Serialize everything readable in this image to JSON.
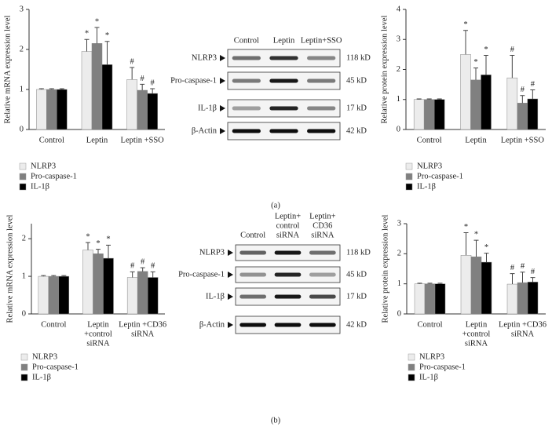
{
  "chart_data": [
    {
      "type": "bar",
      "y_label": "Relative mRNA expression level",
      "categories": [
        [
          "Control"
        ],
        [
          "Leptin"
        ],
        [
          "Leptin +SSO"
        ]
      ],
      "ylim": [
        0,
        3
      ],
      "yticks": [
        0,
        1,
        2,
        3
      ],
      "series": [
        {
          "name": "NLRP3",
          "color": "#ececec",
          "values": [
            1,
            1.95,
            1.25
          ],
          "errors": [
            0.02,
            0.3,
            0.3
          ],
          "markers": [
            null,
            "*",
            "#"
          ]
        },
        {
          "name": "Pro-caspase-1",
          "color": "#808080",
          "values": [
            1,
            2.15,
            0.98
          ],
          "errors": [
            0.02,
            0.4,
            0.15
          ],
          "markers": [
            null,
            "*",
            "#"
          ]
        },
        {
          "name": "IL-1β",
          "color": "#000000",
          "values": [
            1,
            1.62,
            0.9
          ],
          "errors": [
            0.02,
            0.58,
            0.12
          ],
          "markers": [
            null,
            "*",
            "#"
          ]
        }
      ]
    },
    {
      "type": "bar",
      "y_label": "Relative protein expression level",
      "categories": [
        [
          "Control"
        ],
        [
          "Leptin"
        ],
        [
          "Leptin +SSO"
        ]
      ],
      "ylim": [
        0,
        4
      ],
      "yticks": [
        0,
        1,
        2,
        3,
        4
      ],
      "series": [
        {
          "name": "NLRP3",
          "color": "#ececec",
          "values": [
            1,
            2.5,
            1.72
          ],
          "errors": [
            0.02,
            0.8,
            0.75
          ],
          "markers": [
            null,
            "*",
            "#"
          ]
        },
        {
          "name": "Pro-caspase-1",
          "color": "#808080",
          "values": [
            1,
            1.65,
            0.88
          ],
          "errors": [
            0.02,
            0.4,
            0.25
          ],
          "markers": [
            null,
            "*",
            "#"
          ]
        },
        {
          "name": "IL-1β",
          "color": "#000000",
          "values": [
            1,
            1.82,
            1.02
          ],
          "errors": [
            0.02,
            0.65,
            0.3
          ],
          "markers": [
            null,
            "*",
            "#"
          ]
        }
      ]
    },
    {
      "type": "bar",
      "y_label": "Relative mRNA expression level",
      "categories": [
        [
          "Control"
        ],
        [
          "Leptin",
          "+control",
          "siRNA"
        ],
        [
          "Leptin +CD36",
          "siRNA"
        ]
      ],
      "ylim": [
        0,
        2.4
      ],
      "yticks": [
        0,
        1,
        2
      ],
      "series": [
        {
          "name": "NLRP3",
          "color": "#ececec",
          "values": [
            1,
            1.7,
            0.97
          ],
          "errors": [
            0.02,
            0.2,
            0.15
          ],
          "markers": [
            null,
            "*",
            "#"
          ]
        },
        {
          "name": "Pro-caspase-1",
          "color": "#808080",
          "values": [
            1,
            1.6,
            1.13
          ],
          "errors": [
            0.02,
            0.12,
            0.1
          ],
          "markers": [
            null,
            "*",
            "#"
          ]
        },
        {
          "name": "IL-1β",
          "color": "#000000",
          "values": [
            1,
            1.48,
            0.97
          ],
          "errors": [
            0.02,
            0.35,
            0.15
          ],
          "markers": [
            null,
            "*",
            "#"
          ]
        }
      ]
    },
    {
      "type": "bar",
      "y_label": "Relative protein expression level",
      "categories": [
        [
          "Control"
        ],
        [
          "Leptin",
          "+control",
          "siRNA"
        ],
        [
          "Leptin +CD36",
          "siRNA"
        ]
      ],
      "ylim": [
        0,
        3
      ],
      "yticks": [
        0,
        1,
        2,
        3
      ],
      "series": [
        {
          "name": "NLRP3",
          "color": "#ececec",
          "values": [
            1,
            1.95,
            0.99
          ],
          "errors": [
            0.02,
            0.75,
            0.35
          ],
          "markers": [
            null,
            "*",
            "#"
          ]
        },
        {
          "name": "Pro-caspase-1",
          "color": "#808080",
          "values": [
            1,
            1.9,
            1.04
          ],
          "errors": [
            0.02,
            0.55,
            0.35
          ],
          "markers": [
            null,
            "*",
            "#"
          ]
        },
        {
          "name": "IL-1β",
          "color": "#000000",
          "values": [
            1,
            1.72,
            1.06
          ],
          "errors": [
            0.02,
            0.3,
            0.15
          ],
          "markers": [
            null,
            "*",
            "#"
          ]
        }
      ]
    }
  ],
  "blots": [
    {
      "columns": [
        [
          "Control"
        ],
        [
          "Leptin"
        ],
        [
          "Leptin+SSO"
        ]
      ],
      "rows": [
        {
          "label": "NLRP3",
          "size": "118 kD"
        },
        {
          "label": "Pro-caspase-1",
          "size": "45 kD"
        },
        {
          "label": "IL-1β",
          "size": "17 kD"
        },
        {
          "label": "β-Actin",
          "size": "42 kD"
        }
      ]
    },
    {
      "columns": [
        [
          "Control"
        ],
        [
          "Leptin+",
          "control",
          "siRNA"
        ],
        [
          "Leptin+",
          "CD36",
          "siRNA"
        ]
      ],
      "rows": [
        {
          "label": "NLRP3",
          "size": "118 kD"
        },
        {
          "label": "Pro-caspase-1",
          "size": "45 kD"
        },
        {
          "label": "IL-1β",
          "size": "17 kD"
        },
        {
          "label": "β-Actin",
          "size": "42 kD"
        }
      ]
    }
  ],
  "panels": [
    "(a)",
    "(b)"
  ]
}
